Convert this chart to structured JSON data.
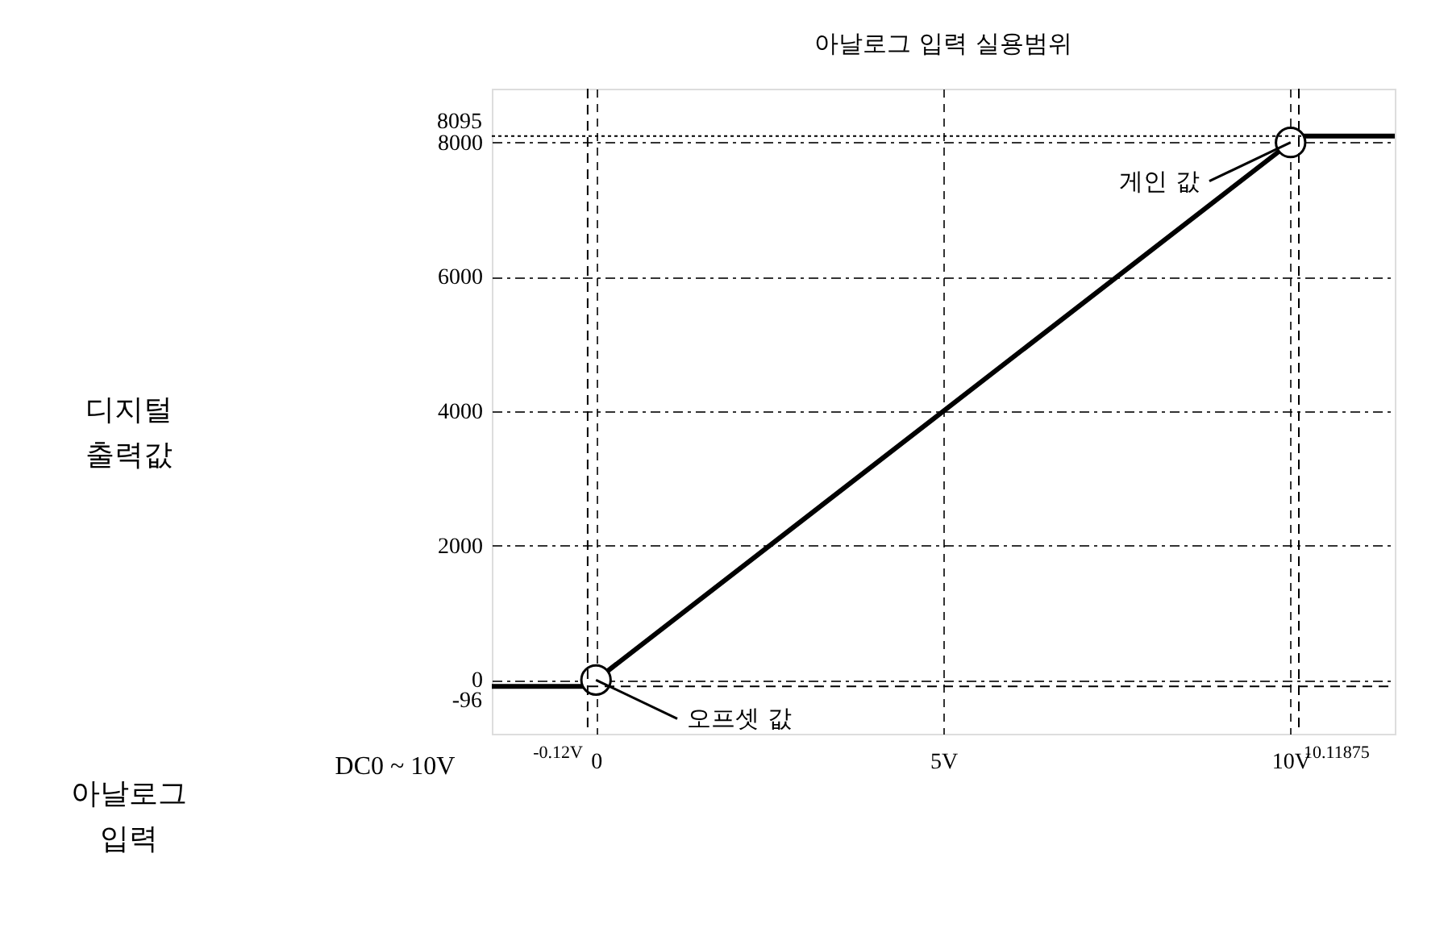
{
  "chart_data": {
    "type": "line",
    "annotations": [
      "아날로그 입력 실용범위",
      {
        "text": "게인 값",
        "x": 10,
        "y": 8000
      },
      {
        "text": "오프셋 값",
        "x": 0,
        "y": 0
      },
      "DC0 ~ 10V",
      "디지털 출력값",
      "아날로그 입력"
    ],
    "xlim": [
      -1.5,
      11.5
    ],
    "ylim": [
      -800,
      8800
    ],
    "xticks": [
      0,
      {
        "value": 5,
        "label": "5V"
      },
      {
        "value": 10,
        "label": "10V"
      }
    ],
    "yticks": [
      0,
      2000,
      4000,
      6000,
      8000
    ],
    "ref_lines": [
      {
        "axis": "x",
        "value": -0.12,
        "label": "-0.12V",
        "line_style": "dashed"
      },
      {
        "axis": "x",
        "value": 10.11875,
        "label": "10.11875",
        "line_style": "dashed"
      },
      {
        "axis": "y",
        "value": -96,
        "label": "-96",
        "line_style": "dashed"
      },
      {
        "axis": "y",
        "value": 8095,
        "label": "8095",
        "line_style": "dotted"
      }
    ],
    "grid": true,
    "line_style": "solid",
    "series": [
      {
        "type": "line",
        "color": "#000000",
        "x": [
          -1.5,
          -0.12,
          10.11875,
          11.5
        ],
        "values": [
          -96,
          -96,
          8095,
          8095
        ]
      },
      {
        "type": "scatter",
        "marker": "circle",
        "color": "#000000",
        "x": [
          0,
          10
        ],
        "values": [
          0,
          8000
        ]
      }
    ]
  }
}
